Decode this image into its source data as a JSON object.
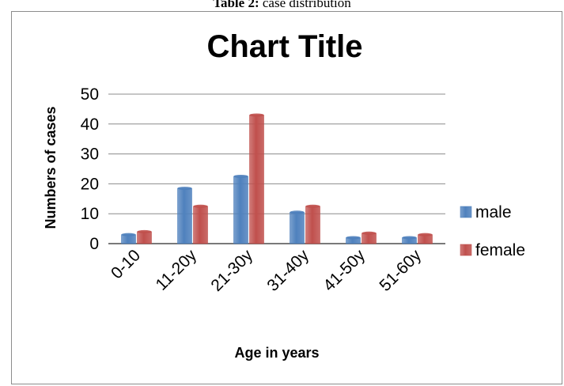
{
  "caption": {
    "prefix": "Table 2:",
    "text": " case distribution"
  },
  "chart_data": {
    "type": "bar",
    "title": "Chart Title",
    "xlabel": "Age in years",
    "ylabel": "Numbers of cases",
    "categories": [
      "0-10",
      "11-20y",
      "21-30y",
      "31-40y",
      "41-50y",
      "51-60y"
    ],
    "series": [
      {
        "name": "male",
        "values": [
          3,
          18.5,
          22.5,
          10.5,
          2,
          2
        ],
        "color": "#4f81bd"
      },
      {
        "name": "female",
        "values": [
          4,
          12.5,
          43,
          12.5,
          3.5,
          3
        ],
        "color": "#c0504d"
      }
    ],
    "ylim": [
      0,
      50
    ],
    "yticks": [
      0,
      10,
      20,
      30,
      40,
      50
    ],
    "grid": true,
    "legend": "right"
  }
}
